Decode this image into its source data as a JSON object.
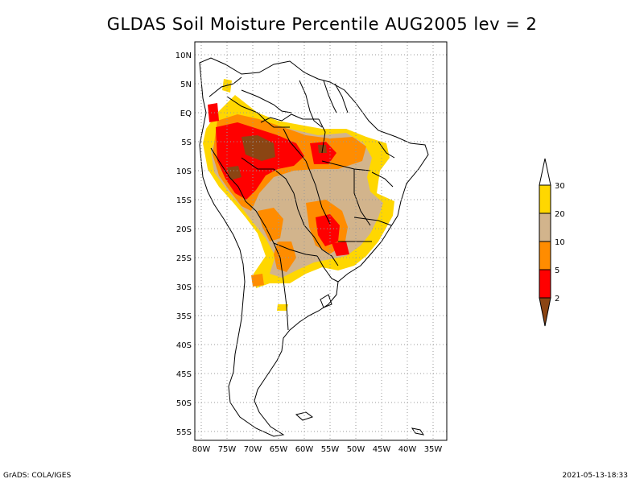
{
  "title": "GLDAS Soil Moisture Percentile AUG2005 lev = 2",
  "footer": {
    "left": "GrADS: COLA/IGES",
    "right": "2021-05-13-18:33"
  },
  "map": {
    "projection": "lat-lon",
    "lon_range": [
      -81,
      -33
    ],
    "lat_range": [
      -56,
      12
    ],
    "grid": true,
    "lat_ticks": [
      {
        "lat": 10,
        "label": "10N"
      },
      {
        "lat": 5,
        "label": "5N"
      },
      {
        "lat": 0,
        "label": "EQ"
      },
      {
        "lat": -5,
        "label": "5S"
      },
      {
        "lat": -10,
        "label": "10S"
      },
      {
        "lat": -15,
        "label": "15S"
      },
      {
        "lat": -20,
        "label": "20S"
      },
      {
        "lat": -25,
        "label": "25S"
      },
      {
        "lat": -30,
        "label": "30S"
      },
      {
        "lat": -35,
        "label": "35S"
      },
      {
        "lat": -40,
        "label": "40S"
      },
      {
        "lat": -45,
        "label": "45S"
      },
      {
        "lat": -50,
        "label": "50S"
      },
      {
        "lat": -55,
        "label": "55S"
      }
    ],
    "lon_ticks": [
      {
        "lon": -80,
        "label": "80W"
      },
      {
        "lon": -75,
        "label": "75W"
      },
      {
        "lon": -70,
        "label": "70W"
      },
      {
        "lon": -65,
        "label": "65W"
      },
      {
        "lon": -60,
        "label": "60W"
      },
      {
        "lon": -55,
        "label": "55W"
      },
      {
        "lon": -50,
        "label": "50W"
      },
      {
        "lon": -45,
        "label": "45W"
      },
      {
        "lon": -40,
        "label": "40W"
      },
      {
        "lon": -35,
        "label": "35W"
      }
    ]
  },
  "legend": {
    "thresholds": [
      "30",
      "20",
      "10",
      "5",
      "2"
    ],
    "colors": {
      "above30": "#ffffff",
      "20to30": "#ffd700",
      "10to20": "#d2b48c",
      "5to10": "#ff8c00",
      "2to5": "#ff0000",
      "below2": "#8b4513"
    }
  }
}
